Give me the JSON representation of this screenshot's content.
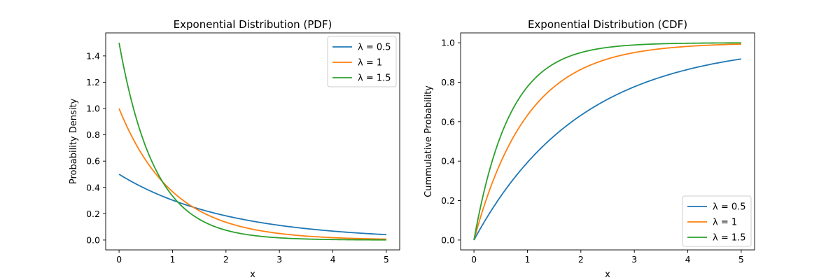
{
  "chart_data": [
    {
      "type": "line",
      "title": "Exponential Distribution (PDF)",
      "xlabel": "x",
      "ylabel": "Probability Density",
      "xlim": [
        -0.25,
        5.25
      ],
      "ylim": [
        -0.075,
        1.575
      ],
      "xticks": [
        0,
        1,
        2,
        3,
        4,
        5
      ],
      "yticks": [
        0.0,
        0.2,
        0.4,
        0.6,
        0.8,
        1.0,
        1.2,
        1.4
      ],
      "function": "pdf",
      "x_range": [
        0,
        5
      ],
      "grid": false,
      "legend": "upper-right",
      "series": [
        {
          "name": "λ = 0.5",
          "lambda": 0.5,
          "color": "#1f77b4"
        },
        {
          "name": "λ = 1",
          "lambda": 1,
          "color": "#ff7f0e"
        },
        {
          "name": "λ = 1.5",
          "lambda": 1.5,
          "color": "#2ca02c"
        }
      ]
    },
    {
      "type": "line",
      "title": "Exponential Distribution (CDF)",
      "xlabel": "x",
      "ylabel": "Cummulative Probability",
      "xlim": [
        -0.25,
        5.25
      ],
      "ylim": [
        -0.05,
        1.05
      ],
      "xticks": [
        0,
        1,
        2,
        3,
        4,
        5
      ],
      "yticks": [
        0.0,
        0.2,
        0.4,
        0.6,
        0.8,
        1.0
      ],
      "function": "cdf",
      "x_range": [
        0,
        5
      ],
      "grid": false,
      "legend": "lower-right",
      "series": [
        {
          "name": "λ = 0.5",
          "lambda": 0.5,
          "color": "#1f77b4"
        },
        {
          "name": "λ = 1",
          "lambda": 1,
          "color": "#ff7f0e"
        },
        {
          "name": "λ = 1.5",
          "lambda": 1.5,
          "color": "#2ca02c"
        }
      ]
    }
  ]
}
